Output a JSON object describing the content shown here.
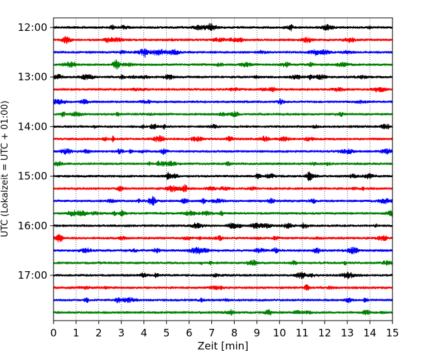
{
  "chart_data": {
    "type": "line",
    "title": "",
    "xlabel": "Zeit  [min]",
    "ylabel": "UTC (Lokalzeit = UTC + 01:00)",
    "xlim": [
      0,
      15
    ],
    "x_ticks": [
      0,
      1,
      2,
      3,
      4,
      5,
      6,
      7,
      8,
      9,
      10,
      11,
      12,
      13,
      14,
      15
    ],
    "y_tick_labels": [
      "12:00",
      "13:00",
      "14:00",
      "15:00",
      "16:00",
      "17:00"
    ],
    "grid": "vertical dotted",
    "trace_interval_minutes": 15,
    "trace_colors": [
      "#000000",
      "#ff0000",
      "#0000ff",
      "#008000"
    ],
    "series": [
      {
        "start": "12:00",
        "color": "#000000"
      },
      {
        "start": "12:15",
        "color": "#ff0000"
      },
      {
        "start": "12:30",
        "color": "#0000ff"
      },
      {
        "start": "12:45",
        "color": "#008000"
      },
      {
        "start": "13:00",
        "color": "#000000"
      },
      {
        "start": "13:15",
        "color": "#ff0000"
      },
      {
        "start": "13:30",
        "color": "#0000ff"
      },
      {
        "start": "13:45",
        "color": "#008000"
      },
      {
        "start": "14:00",
        "color": "#000000"
      },
      {
        "start": "14:15",
        "color": "#ff0000"
      },
      {
        "start": "14:30",
        "color": "#0000ff"
      },
      {
        "start": "14:45",
        "color": "#008000"
      },
      {
        "start": "15:00",
        "color": "#000000"
      },
      {
        "start": "15:15",
        "color": "#ff0000"
      },
      {
        "start": "15:30",
        "color": "#0000ff"
      },
      {
        "start": "15:45",
        "color": "#008000"
      },
      {
        "start": "16:00",
        "color": "#000000"
      },
      {
        "start": "16:15",
        "color": "#ff0000"
      },
      {
        "start": "16:30",
        "color": "#0000ff"
      },
      {
        "start": "16:45",
        "color": "#008000"
      },
      {
        "start": "17:00",
        "color": "#000000"
      },
      {
        "start": "17:15",
        "color": "#ff0000"
      },
      {
        "start": "17:30",
        "color": "#0000ff"
      },
      {
        "start": "17:45",
        "color": "#008000"
      }
    ]
  }
}
